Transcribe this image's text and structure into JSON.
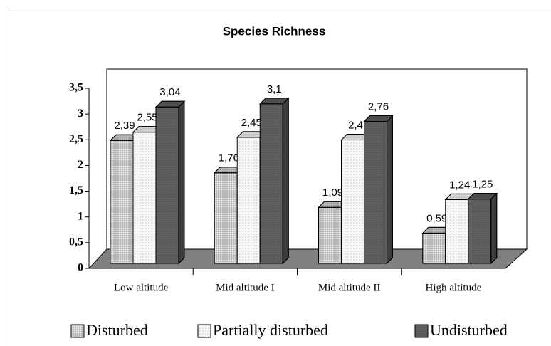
{
  "chart_data": {
    "type": "bar3d",
    "title": "Species Richness",
    "categories": [
      "Low altitude",
      "Mid altitude I",
      "Mid altitude II",
      "High altitude"
    ],
    "series": [
      {
        "name": "Disturbed",
        "color": "#d9d9d9",
        "values": [
          2.39,
          1.76,
          1.09,
          0.59
        ],
        "value_labels": [
          "2,39",
          "1,76",
          "1,09",
          "0,59"
        ]
      },
      {
        "name": "Partially disturbed",
        "color": "#f6f6f6",
        "values": [
          2.55,
          2.45,
          2.4,
          1.24
        ],
        "value_labels": [
          "2,55",
          "2,45",
          "2,4",
          "1,24"
        ]
      },
      {
        "name": "Undisturbed",
        "color": "#606060",
        "values": [
          3.04,
          3.1,
          2.76,
          1.25
        ],
        "value_labels": [
          "3,04",
          "3,1",
          "2,76",
          "1,25"
        ]
      }
    ],
    "ylim": [
      0,
      3.5
    ],
    "yticks": [
      0,
      {
        "value": 0.5,
        "label": "0,5"
      },
      1,
      {
        "value": 1.5,
        "label": "1,5"
      },
      2,
      {
        "value": 2.5,
        "label": "2,5"
      },
      3,
      {
        "value": 3.5,
        "label": "3,5"
      }
    ]
  }
}
